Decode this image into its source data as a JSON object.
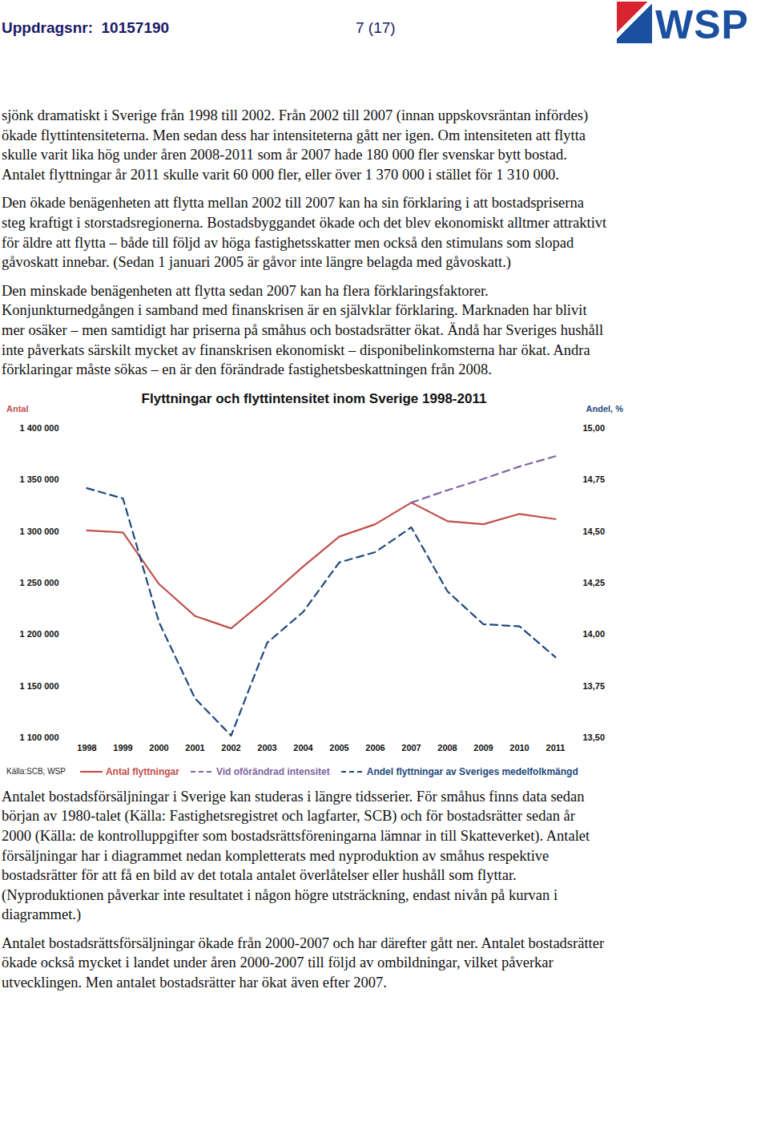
{
  "header": {
    "left": "Uppdragsnr:  10157190",
    "page": "7 (17)",
    "logo": "WSP"
  },
  "paragraphs_before": [
    "sjönk dramatiskt i Sverige från 1998 till 2002. Från 2002 till 2007 (innan uppskovsräntan infördes) ökade flyttintensiteterna. Men sedan dess har intensiteterna gått ner igen. Om intensiteten att flytta skulle varit lika hög under åren 2008-2011 som år 2007 hade 180 000 fler svenskar bytt bostad. Antalet flyttningar år 2011 skulle varit 60 000 fler, eller över 1 370 000 i stället för 1 310 000.",
    "Den ökade benägenheten att flytta mellan 2002 till 2007 kan ha sin förklaring i att bostadspriserna steg kraftigt i storstadsregionerna. Bostadsbyggandet ökade och det blev ekonomiskt alltmer attraktivt för äldre att flytta – både till följd av höga fastighetsskatter men också den stimulans som slopad gåvoskatt innebar. (Sedan 1 januari 2005 är gåvor inte längre belagda med gåvoskatt.)",
    "Den minskade benägenheten att flytta sedan 2007 kan ha flera förklaringsfaktorer. Konjunkturnedgången i samband med finanskrisen är en självklar förklaring. Marknaden har blivit mer osäker – men samtidigt har priserna på småhus och bostadsrätter ökat. Ändå har Sveriges hushåll inte påverkats särskilt mycket av finanskrisen ekonomiskt – disponibelinkomsterna har ökat. Andra förklaringar måste sökas – en är den förändrade fastighetsbeskattningen från 2008."
  ],
  "chart_data": {
    "type": "line",
    "title": "Flyttningar och flyttintensitet inom Sverige 1998-2011",
    "y_label": "Antal",
    "y2_label": "Andel, %",
    "source": "Källa:SCB, WSP",
    "categories": [
      "1998",
      "1999",
      "2000",
      "2001",
      "2002",
      "2003",
      "2004",
      "2005",
      "2006",
      "2007",
      "2008",
      "2009",
      "2010",
      "2011"
    ],
    "ylim": [
      1100000,
      1400000
    ],
    "yticks": [
      {
        "value": 1100000,
        "label": "1 100 000"
      },
      {
        "value": 1150000,
        "label": "1 150 000"
      },
      {
        "value": 1200000,
        "label": "1 200 000"
      },
      {
        "value": 1250000,
        "label": "1 250 000"
      },
      {
        "value": 1300000,
        "label": "1 300 000"
      },
      {
        "value": 1350000,
        "label": "1 350 000"
      },
      {
        "value": 1400000,
        "label": "1 400 000"
      }
    ],
    "y2lim": [
      13.5,
      15
    ],
    "y2ticks": [
      {
        "value": 13.5,
        "label": "13,50"
      },
      {
        "value": 13.75,
        "label": "13,75"
      },
      {
        "value": 14,
        "label": "14,00"
      },
      {
        "value": 14.25,
        "label": "14,25"
      },
      {
        "value": 14.5,
        "label": "14,50"
      },
      {
        "value": 14.75,
        "label": "14,75"
      },
      {
        "value": 15,
        "label": "15,00"
      }
    ],
    "grid": false,
    "legend": "bottom",
    "series": [
      {
        "name": "Antal flyttningar",
        "color": "#c0504d",
        "line_style": "solid",
        "values": [
          1301000,
          1299000,
          1249000,
          1218000,
          1206000,
          1235000,
          1266000,
          1295000,
          1307000,
          1328000,
          1310000,
          1307000,
          1317000,
          1312000
        ]
      },
      {
        "name": "Vid oförändrad intensitet",
        "color": "#8064a2",
        "line_style": "dashed",
        "values": [
          null,
          null,
          null,
          null,
          null,
          null,
          null,
          null,
          null,
          1328000,
          1340000,
          1351000,
          1363000,
          1373000
        ]
      },
      {
        "name": "Andel flyttningar av Sveriges medelfolkmängd",
        "color": "#1f497d",
        "line_style": "dashed",
        "axis": "y2",
        "values": [
          14.71,
          14.66,
          14.06,
          13.69,
          13.51,
          13.96,
          14.11,
          14.35,
          14.4,
          14.52,
          14.21,
          14.05,
          14.04,
          13.89
        ]
      }
    ]
  },
  "paragraphs_after": [
    "Antalet bostadsförsäljningar i Sverige kan studeras i längre tidsserier. För småhus finns data sedan början av 1980-talet (Källa: Fastighetsregistret och lagfarter, SCB) och för bostadsrätter sedan år 2000 (Källa: de kontrolluppgifter som bostadsrättsföreningarna lämnar in till Skatteverket). Antalet försäljningar har i diagrammet nedan kompletterats med nyproduktion av småhus respektive bostadsrätter för att få en bild av det totala antalet överlåtelser eller hushåll som flyttar. (Nyproduktionen påverkar inte resultatet i någon högre utsträckning, endast nivån på kurvan i diagrammet.)",
    "Antalet bostadsrättsförsäljningar ökade från 2000-2007 och har därefter gått ner. Antalet bostadsrätter ökade också mycket i landet under åren 2000-2007 till följd av ombildningar, vilket påverkar utvecklingen. Men antalet bostadsrätter har ökat även efter 2007."
  ]
}
